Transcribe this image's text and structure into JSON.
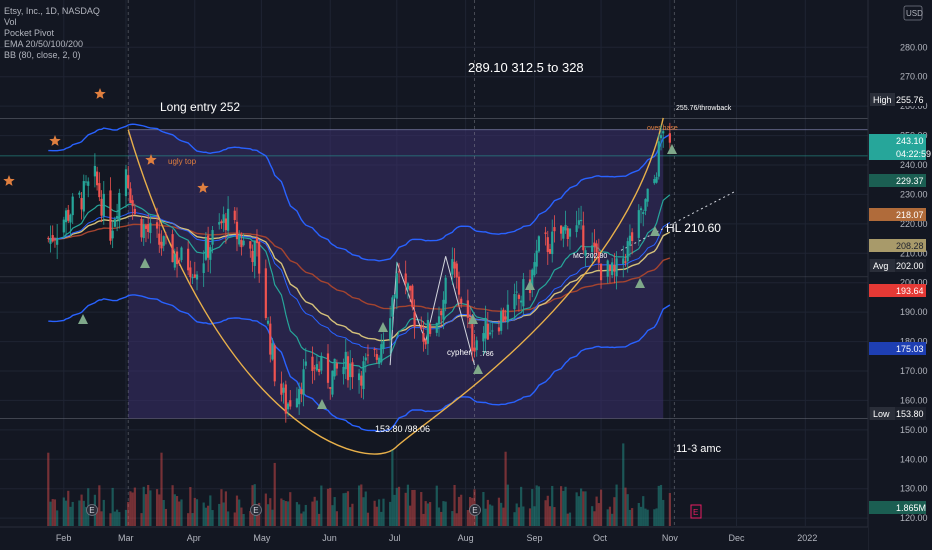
{
  "header": {
    "title_line": "Etsy, Inc., 1D, NASDAQ",
    "indicators": [
      "Vol",
      "Pocket Pivot",
      "EMA 20/50/100/200",
      "BB (80, close, 2, 0)"
    ]
  },
  "currency_label": "USD",
  "colors": {
    "background": "#131722",
    "up": "#26a69a",
    "down": "#ef5350",
    "cup_fill": "#3b2f6b",
    "bb": "#2962ff",
    "ema20": "#26a69a",
    "ema50": "#d4c07a",
    "ema100": "#a5442f",
    "ema200": "#2962ff",
    "cup_curve": "#e8b04a",
    "star": "#e07f3f",
    "triangle": "#7fa88a"
  },
  "chart_data": {
    "type": "candlestick",
    "symbol": "ETSY",
    "interval": "1D",
    "x_tick_labels": [
      "Feb",
      "Mar",
      "Apr",
      "May",
      "Jun",
      "Jul",
      "Aug",
      "Sep",
      "Oct",
      "Nov",
      "Dec",
      "2022"
    ],
    "y_ticks": [
      120,
      130,
      140,
      150,
      160,
      170,
      180,
      190,
      200,
      210,
      220,
      230,
      240,
      250,
      260,
      270,
      280
    ],
    "y_range": [
      118,
      292
    ],
    "close_path": [
      [
        "2021-01-26",
        215
      ],
      [
        "2021-02-01",
        222
      ],
      [
        "2021-02-08",
        228
      ],
      [
        "2021-02-15",
        235
      ],
      [
        "2021-02-22",
        218
      ],
      [
        "2021-03-01",
        240
      ],
      [
        "2021-03-05",
        222
      ],
      [
        "2021-03-10",
        218
      ],
      [
        "2021-03-18",
        212
      ],
      [
        "2021-03-26",
        208
      ],
      [
        "2021-04-02",
        205
      ],
      [
        "2021-04-09",
        215
      ],
      [
        "2021-04-15",
        222
      ],
      [
        "2021-04-22",
        214
      ],
      [
        "2021-04-29",
        210
      ],
      [
        "2021-05-04",
        185
      ],
      [
        "2021-05-07",
        170
      ],
      [
        "2021-05-12",
        158
      ],
      [
        "2021-05-18",
        166
      ],
      [
        "2021-05-25",
        172
      ],
      [
        "2021-06-01",
        168
      ],
      [
        "2021-06-08",
        172
      ],
      [
        "2021-06-15",
        170
      ],
      [
        "2021-06-22",
        175
      ],
      [
        "2021-06-29",
        195
      ],
      [
        "2021-07-02",
        205
      ],
      [
        "2021-07-08",
        190
      ],
      [
        "2021-07-14",
        182
      ],
      [
        "2021-07-20",
        190
      ],
      [
        "2021-07-26",
        205
      ],
      [
        "2021-07-30",
        195
      ],
      [
        "2021-08-04",
        180
      ],
      [
        "2021-08-09",
        183
      ],
      [
        "2021-08-16",
        188
      ],
      [
        "2021-08-23",
        192
      ],
      [
        "2021-08-30",
        200
      ],
      [
        "2021-09-03",
        212
      ],
      [
        "2021-09-10",
        214
      ],
      [
        "2021-09-17",
        220
      ],
      [
        "2021-09-24",
        215
      ],
      [
        "2021-10-01",
        205
      ],
      [
        "2021-10-07",
        202
      ],
      [
        "2021-10-13",
        212
      ],
      [
        "2021-10-19",
        222
      ],
      [
        "2021-10-25",
        235
      ],
      [
        "2021-10-29",
        254
      ],
      [
        "2021-11-01",
        243.1
      ]
    ],
    "volume_scale": "1.865M",
    "price_labels": [
      {
        "text": "High",
        "value": "255.76"
      },
      {
        "text": "",
        "value": "243.10"
      },
      {
        "text": "",
        "value": "04:22:59"
      },
      {
        "text": "",
        "value": "229.37"
      },
      {
        "text": "",
        "value": "218.07"
      },
      {
        "text": "",
        "value": "208.28"
      },
      {
        "text": "Avg",
        "value": "202.00"
      },
      {
        "text": "",
        "value": "193.64"
      },
      {
        "text": "",
        "value": "175.03"
      },
      {
        "text": "Low",
        "value": "153.80"
      },
      {
        "text": "",
        "value": "1.865M"
      }
    ],
    "annotations": [
      "Long entry 252",
      "289.10  312.5 to 328",
      "ugly top",
      "255.76/throwback",
      "over base",
      "HL 210.60",
      "MC 202.80",
      "cypher",
      ".786",
      "153.80  /98.06",
      "11-3  amc"
    ],
    "earnings_markers": [
      "E",
      "E",
      "E"
    ]
  }
}
